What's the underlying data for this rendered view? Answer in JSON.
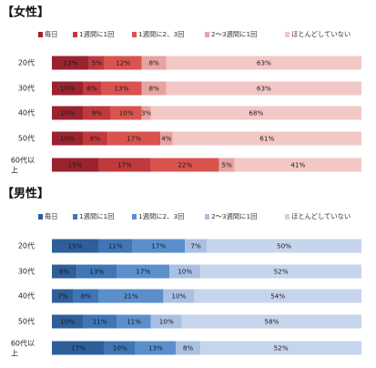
{
  "chart_data": [
    {
      "type": "bar",
      "stacked": true,
      "orientation": "horizontal",
      "title": "【女性】",
      "categories": [
        "20代",
        "30代",
        "40代",
        "50代",
        "60代以上"
      ],
      "category_lines": [
        [
          "20代"
        ],
        [
          "30代"
        ],
        [
          "40代"
        ],
        [
          "50代"
        ],
        [
          "60代以",
          "上"
        ]
      ],
      "legend_position": "top",
      "xlim": [
        0,
        100
      ],
      "series": [
        {
          "name": "毎日",
          "color": "#9b2330",
          "values": [
            12,
            10,
            10,
            10,
            15
          ]
        },
        {
          "name": "1週間に1回",
          "color": "#c0393c",
          "values": [
            5,
            6,
            9,
            8,
            17
          ]
        },
        {
          "name": "1週間に2、3回",
          "color": "#d9534f",
          "values": [
            12,
            13,
            10,
            17,
            22
          ]
        },
        {
          "name": "2～3週間に1回",
          "color": "#e8a3a1",
          "values": [
            8,
            8,
            3,
            4,
            5
          ]
        },
        {
          "name": "ほとんどしていない",
          "color": "#f2c8c6",
          "values": [
            63,
            63,
            68,
            61,
            41
          ]
        }
      ],
      "labels": [
        [
          "12%",
          "5%",
          "12%",
          "8%",
          "63%"
        ],
        [
          "10%",
          "6%",
          "13%",
          "8%",
          "63%"
        ],
        [
          "10%",
          "9%",
          "10%",
          "3%",
          "68%"
        ],
        [
          "10%",
          "8%",
          "17%",
          "4%",
          "61%"
        ],
        [
          "15%",
          "17%",
          "22%",
          "5%",
          "41%"
        ]
      ]
    },
    {
      "type": "bar",
      "stacked": true,
      "orientation": "horizontal",
      "title": "【男性】",
      "categories": [
        "20代",
        "30代",
        "40代",
        "50代",
        "60代以上"
      ],
      "category_lines": [
        [
          "20代"
        ],
        [
          "30代"
        ],
        [
          "40代"
        ],
        [
          "50代"
        ],
        [
          "60代以",
          "上"
        ]
      ],
      "legend_position": "top",
      "xlim": [
        0,
        100
      ],
      "series": [
        {
          "name": "毎日",
          "color": "#2f5f9a",
          "values": [
            15,
            8,
            7,
            10,
            17
          ]
        },
        {
          "name": "1週間に1回",
          "color": "#3e76b6",
          "values": [
            11,
            13,
            8,
            11,
            10
          ]
        },
        {
          "name": "1週間に2、3回",
          "color": "#5b8fcc",
          "values": [
            17,
            17,
            21,
            11,
            13
          ]
        },
        {
          "name": "2～3週間に1回",
          "color": "#a9c0e2",
          "values": [
            7,
            10,
            10,
            10,
            8
          ]
        },
        {
          "name": "ほとんどしていない",
          "color": "#c6d5ec",
          "values": [
            50,
            52,
            54,
            58,
            52
          ]
        }
      ],
      "labels": [
        [
          "15%",
          "11%",
          "17%",
          "7%",
          "50%"
        ],
        [
          "8%",
          "13%",
          "17%",
          "10%",
          "52%"
        ],
        [
          "7%",
          "8%",
          "21%",
          "10%",
          "54%"
        ],
        [
          "10%",
          "11%",
          "11%",
          "10%",
          "58%"
        ],
        [
          "17%",
          "10%",
          "13%",
          "8%",
          "52%"
        ]
      ]
    }
  ]
}
